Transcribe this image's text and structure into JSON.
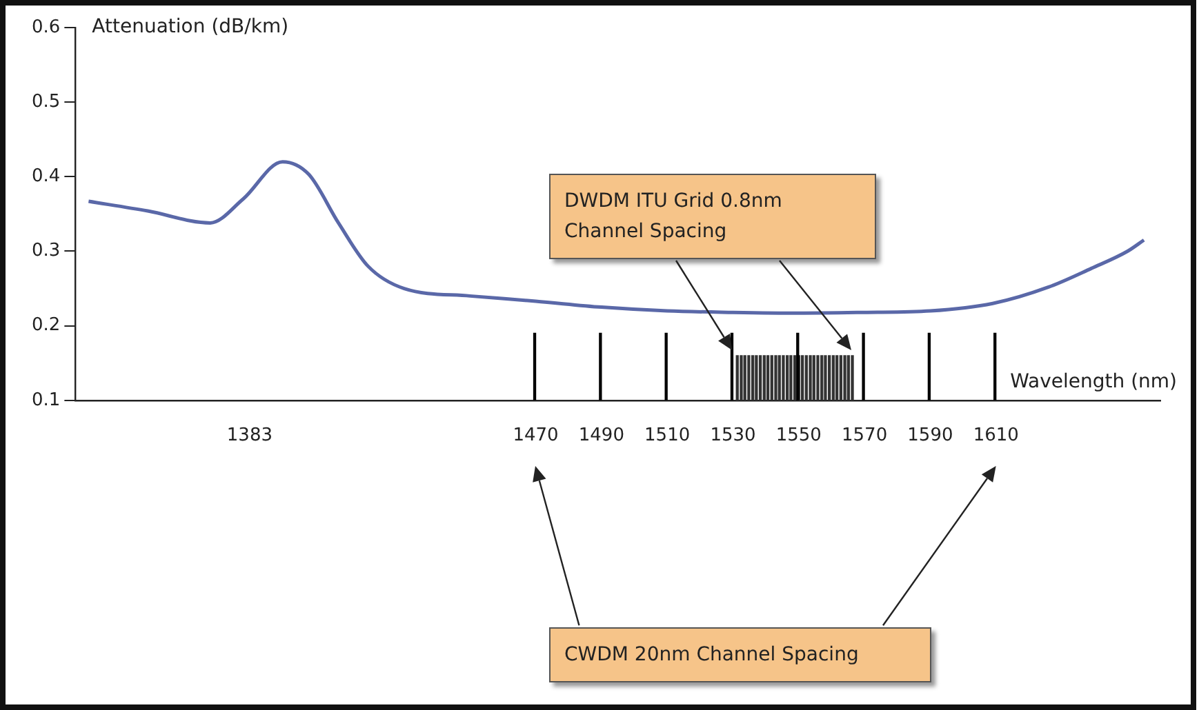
{
  "chart_data": {
    "type": "line",
    "xlabel": "Wavelength (nm)",
    "ylabel": "Attenuation (dB/km)",
    "xlim": [
      1330,
      1660
    ],
    "xticks": [
      1383,
      1470,
      1490,
      1510,
      1530,
      1550,
      1570,
      1590,
      1610
    ],
    "ylim": [
      0.1,
      0.6
    ],
    "yticks": [
      0.1,
      0.2,
      0.3,
      0.4,
      0.5,
      0.6
    ],
    "grid": false,
    "legend": false,
    "series": [
      {
        "color": "#5a68a8",
        "x": [
          1334,
          1352,
          1371,
          1381,
          1393,
          1401,
          1410,
          1419,
          1430,
          1450,
          1470,
          1490,
          1510,
          1530,
          1550,
          1570,
          1590,
          1609,
          1626,
          1639,
          1650,
          1655
        ],
        "values": [
          0.367,
          0.354,
          0.338,
          0.37,
          0.42,
          0.403,
          0.338,
          0.28,
          0.25,
          0.24,
          0.233,
          0.225,
          0.22,
          0.218,
          0.217,
          0.218,
          0.22,
          0.23,
          0.252,
          0.277,
          0.3,
          0.315
        ]
      },
      {
        "type": "bar",
        "color": "#000000",
        "x": [
          1470,
          1490,
          1510,
          1530,
          1550,
          1570,
          1590,
          1610
        ],
        "values": [
          0.19,
          0.19,
          0.19,
          0.19,
          0.19,
          0.19,
          0.19,
          0.19
        ]
      },
      {
        "type": "bar",
        "color": "#333333",
        "x": [
          1531.0,
          1532.2,
          1533.3,
          1534.5,
          1535.7,
          1536.8,
          1538.0,
          1539.2,
          1540.3,
          1541.5,
          1542.7,
          1543.8,
          1545.0,
          1546.2,
          1547.3,
          1548.5,
          1549.7,
          1550.8,
          1552.0,
          1553.2,
          1554.3,
          1555.5,
          1556.7,
          1557.8,
          1559.0,
          1560.2,
          1561.3,
          1562.5,
          1563.7,
          1564.8,
          1566.0
        ],
        "values": [
          0.16,
          0.16,
          0.16,
          0.16,
          0.16,
          0.16,
          0.16,
          0.16,
          0.16,
          0.16,
          0.16,
          0.16,
          0.16,
          0.16,
          0.16,
          0.16,
          0.16,
          0.16,
          0.16,
          0.16,
          0.16,
          0.16,
          0.16,
          0.16,
          0.16,
          0.16,
          0.16,
          0.16,
          0.16,
          0.16,
          0.16
        ]
      }
    ],
    "annotations": [
      "DWDM ITU Grid 0.8nm Channel Spacing",
      "CWDM 20nm Channel Spacing"
    ]
  }
}
